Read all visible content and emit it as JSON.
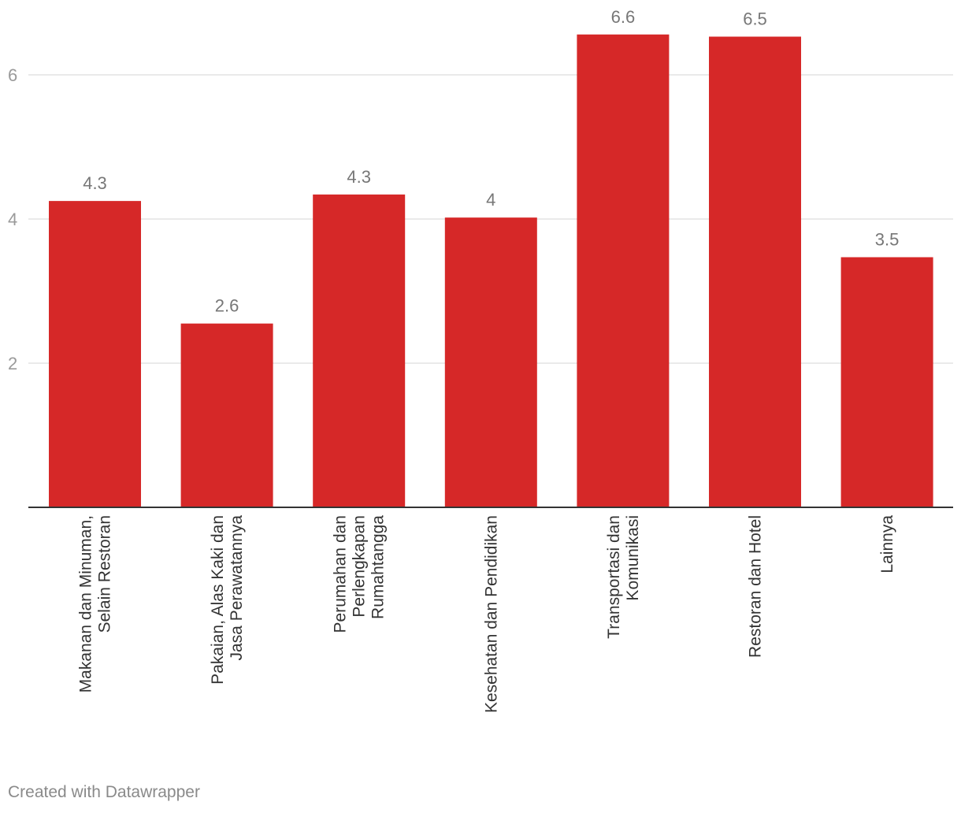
{
  "colors": {
    "bar": "#d62828",
    "grid": "#e3e3e3",
    "axis": "#333333",
    "tick_text": "#9a9a9a",
    "value_text": "#777777",
    "category_text": "#333333"
  },
  "chart_data": {
    "type": "bar",
    "title": "",
    "xlabel": "",
    "ylabel": "",
    "ylim": [
      0,
      7
    ],
    "yticks": [
      2,
      4,
      6
    ],
    "grid": true,
    "categories": [
      [
        "Makanan dan Minuman,",
        "Selain Restoran"
      ],
      [
        "Pakaian, Alas Kaki dan",
        "Jasa Perawatannya"
      ],
      [
        "Perumahan dan",
        "Perlengkapan",
        "Rumahtangga"
      ],
      [
        "Kesehatan dan Pendidikan"
      ],
      [
        "Transportasi dan",
        "Komunikasi"
      ],
      [
        "Restoran dan Hotel"
      ],
      [
        "Lainnya"
      ]
    ],
    "values": [
      4.25,
      2.55,
      4.34,
      4.02,
      6.56,
      6.53,
      3.47
    ],
    "data_labels": [
      "4.3",
      "2.6",
      "4.3",
      "4",
      "6.6",
      "6.5",
      "3.5"
    ]
  },
  "footer": {
    "credit": "Created with Datawrapper"
  }
}
